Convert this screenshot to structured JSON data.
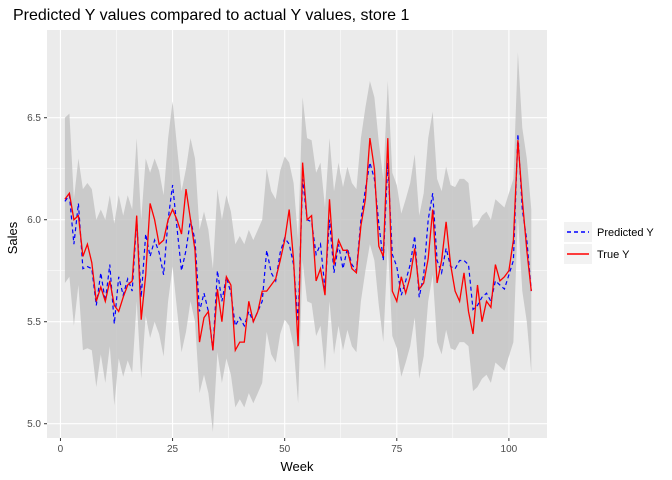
{
  "chart_data": {
    "type": "line",
    "title": "Predicted Y values compared to actual Y values, store 1",
    "xlabel": "Week",
    "ylabel": "Sales",
    "xlim": [
      -3,
      108.5
    ],
    "ylim": [
      4.93,
      6.93
    ],
    "x_ticks": [
      0,
      25,
      50,
      75,
      100
    ],
    "x_tick_labels": [
      "0",
      "25",
      "50",
      "75",
      "100"
    ],
    "y_ticks": [
      5.0,
      5.5,
      6.0,
      6.5
    ],
    "y_tick_labels": [
      "5.0",
      "5.5",
      "6.0",
      "6.5"
    ],
    "grid": true,
    "legend_position": "right",
    "x": [
      1,
      2,
      3,
      4,
      5,
      6,
      7,
      8,
      9,
      10,
      11,
      12,
      13,
      14,
      15,
      16,
      17,
      18,
      19,
      20,
      21,
      22,
      23,
      24,
      25,
      26,
      27,
      28,
      29,
      30,
      31,
      32,
      33,
      34,
      35,
      36,
      37,
      38,
      39,
      40,
      41,
      42,
      43,
      44,
      45,
      46,
      47,
      48,
      49,
      50,
      51,
      52,
      53,
      54,
      55,
      56,
      57,
      58,
      59,
      60,
      61,
      62,
      63,
      64,
      65,
      66,
      67,
      68,
      69,
      70,
      71,
      72,
      73,
      74,
      75,
      76,
      77,
      78,
      79,
      80,
      81,
      82,
      83,
      84,
      85,
      86,
      87,
      88,
      89,
      90,
      91,
      92,
      93,
      94,
      95,
      96,
      97,
      98,
      99,
      100,
      101,
      102,
      103,
      104,
      105
    ],
    "series": [
      {
        "name": "Predicted Y",
        "color": "#0000ff",
        "dash": "dashed",
        "values": [
          6.09,
          6.12,
          5.88,
          6.08,
          5.76,
          5.77,
          5.76,
          5.58,
          5.74,
          5.6,
          5.78,
          5.49,
          5.72,
          5.63,
          5.71,
          5.65,
          6.0,
          5.62,
          5.93,
          5.82,
          5.9,
          5.84,
          5.73,
          6.0,
          6.17,
          5.96,
          5.75,
          5.85,
          6.0,
          5.9,
          5.55,
          5.64,
          5.55,
          5.36,
          5.75,
          5.6,
          5.72,
          5.64,
          5.48,
          5.52,
          5.48,
          5.55,
          5.5,
          5.55,
          5.6,
          5.85,
          5.74,
          5.7,
          5.84,
          5.91,
          5.88,
          5.78,
          5.5,
          6.2,
          6.0,
          5.99,
          5.83,
          5.88,
          5.66,
          6.0,
          5.74,
          5.88,
          5.76,
          5.86,
          5.78,
          5.75,
          6.0,
          6.15,
          6.28,
          6.2,
          5.98,
          5.8,
          6.28,
          5.83,
          5.77,
          5.63,
          5.7,
          5.78,
          5.92,
          5.62,
          5.73,
          6.0,
          6.13,
          5.8,
          5.74,
          5.86,
          5.77,
          5.76,
          5.8,
          5.8,
          5.78,
          5.56,
          5.58,
          5.62,
          5.64,
          5.6,
          5.7,
          5.68,
          5.66,
          5.73,
          5.8,
          6.42,
          6.05,
          5.9,
          5.65
        ]
      },
      {
        "name": "True Y",
        "color": "#ff0000",
        "dash": "solid",
        "values": [
          6.1,
          6.13,
          6.0,
          6.02,
          5.82,
          5.88,
          5.79,
          5.6,
          5.67,
          5.6,
          5.7,
          5.58,
          5.55,
          5.62,
          5.68,
          5.7,
          6.02,
          5.51,
          5.73,
          6.08,
          6.0,
          5.88,
          5.9,
          6.0,
          6.05,
          6.0,
          5.93,
          6.15,
          6.0,
          5.85,
          5.4,
          5.52,
          5.55,
          5.36,
          5.66,
          5.5,
          5.72,
          5.68,
          5.36,
          5.4,
          5.4,
          5.6,
          5.5,
          5.55,
          5.65,
          5.65,
          5.68,
          5.71,
          5.8,
          5.9,
          6.05,
          5.8,
          5.38,
          6.28,
          6.0,
          6.02,
          5.7,
          5.76,
          5.63,
          6.1,
          5.78,
          5.9,
          5.85,
          5.85,
          5.76,
          5.74,
          5.97,
          6.1,
          6.4,
          6.25,
          5.87,
          5.82,
          6.4,
          5.65,
          5.6,
          5.72,
          5.64,
          5.72,
          5.86,
          5.66,
          5.69,
          5.81,
          6.05,
          5.69,
          5.8,
          5.99,
          5.78,
          5.65,
          5.6,
          5.74,
          5.55,
          5.44,
          5.68,
          5.5,
          5.6,
          5.57,
          5.78,
          5.7,
          5.72,
          5.75,
          5.9,
          6.39,
          6.1,
          5.85,
          5.65
        ]
      }
    ],
    "band": {
      "color": "#c4c4c4",
      "upper": [
        6.5,
        6.52,
        6.1,
        6.3,
        6.15,
        6.18,
        6.15,
        6.0,
        6.05,
        6.0,
        6.12,
        5.98,
        6.12,
        6.02,
        6.12,
        6.05,
        6.4,
        6.0,
        6.3,
        6.23,
        6.3,
        6.24,
        6.12,
        6.4,
        6.58,
        6.36,
        6.14,
        6.25,
        6.4,
        6.3,
        5.95,
        6.04,
        5.95,
        5.76,
        6.15,
        6.0,
        6.12,
        6.04,
        5.88,
        5.92,
        5.88,
        5.95,
        5.9,
        5.95,
        6.0,
        6.25,
        6.14,
        6.1,
        6.24,
        6.31,
        6.28,
        6.18,
        5.9,
        6.6,
        6.4,
        6.39,
        6.23,
        6.28,
        6.06,
        6.4,
        6.14,
        6.28,
        6.16,
        6.26,
        6.18,
        6.15,
        6.4,
        6.55,
        6.68,
        6.6,
        6.38,
        6.2,
        6.68,
        6.23,
        6.17,
        6.03,
        6.1,
        6.18,
        6.32,
        6.02,
        6.13,
        6.4,
        6.53,
        6.2,
        6.14,
        6.26,
        6.17,
        6.16,
        6.2,
        6.2,
        6.18,
        5.96,
        5.98,
        6.02,
        6.04,
        6.0,
        6.1,
        6.08,
        6.06,
        6.13,
        6.2,
        6.82,
        6.45,
        6.3,
        6.05
      ],
      "lower": [
        5.69,
        5.72,
        5.48,
        5.68,
        5.36,
        5.37,
        5.36,
        5.18,
        5.34,
        5.2,
        5.38,
        5.09,
        5.32,
        5.23,
        5.31,
        5.25,
        5.6,
        5.22,
        5.53,
        5.42,
        5.5,
        5.44,
        5.33,
        5.6,
        5.77,
        5.56,
        5.35,
        5.45,
        5.6,
        5.5,
        5.15,
        5.24,
        5.15,
        4.96,
        5.35,
        5.2,
        5.32,
        5.24,
        5.08,
        5.12,
        5.08,
        5.15,
        5.1,
        5.15,
        5.2,
        5.45,
        5.34,
        5.3,
        5.44,
        5.51,
        5.48,
        5.38,
        5.1,
        5.8,
        5.6,
        5.59,
        5.43,
        5.48,
        5.26,
        5.6,
        5.34,
        5.48,
        5.36,
        5.46,
        5.38,
        5.35,
        5.6,
        5.75,
        5.88,
        5.8,
        5.58,
        5.4,
        5.88,
        5.43,
        5.37,
        5.23,
        5.3,
        5.38,
        5.52,
        5.22,
        5.33,
        5.6,
        5.73,
        5.4,
        5.34,
        5.46,
        5.37,
        5.36,
        5.4,
        5.4,
        5.38,
        5.16,
        5.18,
        5.22,
        5.24,
        5.2,
        5.3,
        5.28,
        5.26,
        5.33,
        5.4,
        6.02,
        5.65,
        5.5,
        5.25
      ]
    },
    "colors": {
      "panel_background": "#ebebeb",
      "grid_major": "#ffffff",
      "tick_label": "#4d4d4d",
      "legend_key_background": "#f2f2f2"
    }
  }
}
